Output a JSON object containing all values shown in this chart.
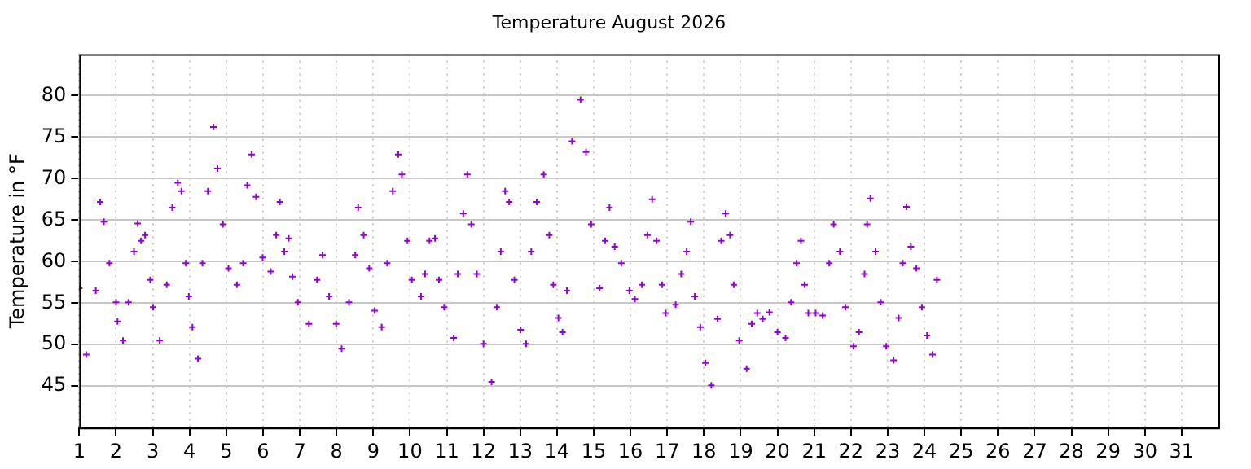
{
  "chart_data": {
    "type": "scatter",
    "title": "Temperature August 2026",
    "ylabel": "Temperature in °F",
    "color": "#9400d3",
    "marker": "cross",
    "grid": true,
    "x": [
      1.0,
      1.19,
      1.45,
      1.57,
      1.67,
      1.82,
      2.0,
      2.04,
      2.19,
      2.34,
      2.49,
      2.59,
      2.68,
      2.79,
      2.93,
      3.01,
      3.19,
      3.38,
      3.53,
      3.68,
      3.78,
      3.9,
      3.98,
      4.08,
      4.23,
      4.35,
      4.5,
      4.65,
      4.76,
      4.91,
      5.06,
      5.29,
      5.46,
      5.57,
      5.69,
      5.81,
      5.99,
      6.21,
      6.36,
      6.46,
      6.58,
      6.7,
      6.8,
      6.95,
      7.25,
      7.47,
      7.62,
      7.8,
      7.99,
      8.14,
      8.34,
      8.51,
      8.59,
      8.74,
      8.89,
      9.04,
      9.23,
      9.38,
      9.53,
      9.68,
      9.78,
      9.93,
      10.05,
      10.3,
      10.41,
      10.53,
      10.68,
      10.79,
      10.93,
      11.19,
      11.3,
      11.45,
      11.56,
      11.67,
      11.82,
      12.0,
      12.22,
      12.36,
      12.47,
      12.59,
      12.7,
      12.84,
      13.01,
      13.16,
      13.3,
      13.45,
      13.64,
      13.79,
      13.9,
      14.04,
      14.15,
      14.27,
      14.41,
      14.64,
      14.79,
      14.93,
      15.16,
      15.31,
      15.43,
      15.57,
      15.75,
      15.97,
      16.12,
      16.31,
      16.46,
      16.59,
      16.71,
      16.86,
      16.96,
      17.23,
      17.38,
      17.53,
      17.64,
      17.75,
      17.9,
      18.04,
      18.2,
      18.37,
      18.47,
      18.59,
      18.71,
      18.81,
      18.96,
      19.16,
      19.3,
      19.45,
      19.6,
      19.78,
      20.0,
      20.22,
      20.37,
      20.52,
      20.64,
      20.74,
      20.84,
      21.04,
      21.23,
      21.41,
      21.53,
      21.7,
      21.85,
      22.07,
      22.22,
      22.37,
      22.44,
      22.53,
      22.67,
      22.81,
      22.96,
      23.16,
      23.3,
      23.41,
      23.51,
      23.63,
      23.78,
      23.93,
      24.07,
      24.22,
      24.34
    ],
    "values": [
      56.8,
      48.8,
      56.5,
      67.2,
      64.8,
      59.8,
      55.1,
      52.8,
      50.5,
      55.1,
      61.2,
      64.6,
      62.5,
      63.2,
      57.8,
      54.5,
      50.5,
      57.2,
      66.5,
      69.5,
      68.5,
      59.8,
      55.8,
      52.1,
      48.3,
      59.8,
      68.5,
      76.2,
      71.2,
      64.5,
      59.2,
      57.2,
      59.8,
      69.2,
      72.9,
      67.8,
      60.5,
      58.8,
      63.2,
      67.2,
      61.2,
      62.8,
      58.2,
      55.1,
      52.5,
      57.8,
      60.8,
      55.8,
      52.5,
      49.5,
      55.1,
      60.8,
      66.5,
      63.2,
      59.2,
      54.1,
      52.1,
      59.8,
      68.5,
      72.9,
      70.5,
      62.5,
      57.8,
      55.8,
      58.5,
      62.5,
      62.8,
      57.8,
      54.5,
      50.8,
      58.5,
      65.8,
      70.5,
      64.5,
      58.5,
      50.1,
      45.5,
      54.5,
      61.2,
      68.5,
      67.2,
      57.8,
      51.8,
      50.1,
      61.2,
      67.2,
      70.5,
      63.2,
      57.2,
      53.2,
      51.5,
      56.5,
      74.5,
      79.5,
      73.2,
      64.5,
      56.8,
      62.5,
      66.5,
      61.8,
      59.8,
      56.5,
      55.5,
      57.2,
      63.2,
      67.5,
      62.5,
      57.2,
      53.8,
      54.8,
      58.5,
      61.2,
      64.8,
      55.8,
      52.1,
      47.8,
      45.1,
      53.1,
      62.5,
      65.8,
      63.2,
      57.2,
      50.5,
      47.1,
      52.5,
      53.8,
      53.1,
      53.9,
      51.5,
      50.8,
      55.1,
      59.8,
      62.5,
      57.2,
      53.8,
      53.8,
      53.5,
      59.8,
      64.5,
      61.2,
      54.5,
      49.8,
      51.5,
      58.5,
      64.5,
      67.6,
      61.2,
      55.1,
      49.8,
      48.1,
      53.2,
      59.8,
      66.6,
      61.8,
      59.2,
      54.5,
      51.1,
      48.8,
      57.8
    ],
    "xlim": [
      1,
      32
    ],
    "xticks": [
      1,
      2,
      3,
      4,
      5,
      6,
      7,
      8,
      9,
      10,
      11,
      12,
      13,
      14,
      15,
      16,
      17,
      18,
      19,
      20,
      21,
      22,
      23,
      24,
      25,
      26,
      27,
      28,
      29,
      30,
      31
    ],
    "ylim": [
      40,
      85
    ],
    "yticks": [
      45,
      50,
      55,
      60,
      65,
      70,
      75,
      80
    ]
  }
}
